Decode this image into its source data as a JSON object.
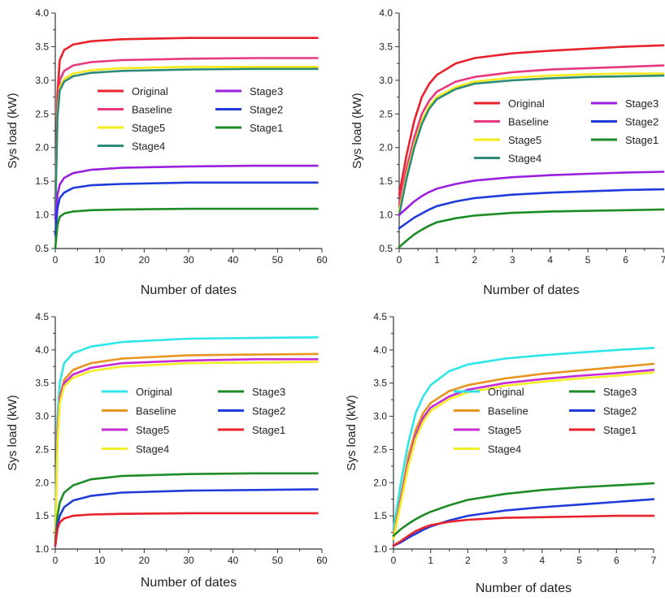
{
  "chart_data": [
    {
      "type": "line",
      "xlabel": "Number of dates",
      "ylabel": "Sys load (kW)",
      "xlim": [
        0,
        60
      ],
      "ylim": [
        0.5,
        4.0
      ],
      "xticks": [
        "0",
        "10",
        "20",
        "30",
        "40",
        "50",
        "60"
      ],
      "yticks": [
        "0.5",
        "1.0",
        "1.5",
        "2.0",
        "2.5",
        "3.0",
        "3.5",
        "4.0"
      ],
      "grid": false,
      "legend_position": "middle",
      "series": [
        {
          "name": "Original",
          "color": "#e8212a",
          "x": [
            0,
            0.5,
            1,
            2,
            4,
            8,
            15,
            30,
            45,
            59
          ],
          "y": [
            1.2,
            2.8,
            3.3,
            3.45,
            3.53,
            3.58,
            3.61,
            3.63,
            3.63,
            3.63
          ]
        },
        {
          "name": "Baseline",
          "color": "#e8377f",
          "x": [
            0,
            0.5,
            1,
            2,
            4,
            8,
            15,
            30,
            45,
            59
          ],
          "y": [
            1.1,
            2.6,
            3.0,
            3.14,
            3.22,
            3.27,
            3.3,
            3.32,
            3.33,
            3.33
          ]
        },
        {
          "name": "Stage5",
          "color": "#f5ea1b",
          "x": [
            0,
            0.5,
            1,
            2,
            4,
            8,
            15,
            30,
            45,
            59
          ],
          "y": [
            1.05,
            2.5,
            2.9,
            3.02,
            3.1,
            3.15,
            3.18,
            3.2,
            3.2,
            3.2
          ]
        },
        {
          "name": "Stage4",
          "color": "#2e8b7a",
          "x": [
            0,
            0.5,
            1,
            2,
            4,
            8,
            15,
            30,
            45,
            59
          ],
          "y": [
            1.0,
            2.45,
            2.85,
            2.98,
            3.06,
            3.11,
            3.14,
            3.16,
            3.17,
            3.17
          ]
        },
        {
          "name": "Stage3",
          "color": "#9a1fdf",
          "x": [
            0,
            0.5,
            1,
            2,
            4,
            8,
            15,
            30,
            45,
            59
          ],
          "y": [
            0.95,
            1.3,
            1.45,
            1.55,
            1.62,
            1.67,
            1.7,
            1.72,
            1.73,
            1.73
          ]
        },
        {
          "name": "Stage2",
          "color": "#1f3bdc",
          "x": [
            0,
            0.5,
            1,
            2,
            4,
            8,
            15,
            30,
            45,
            59
          ],
          "y": [
            0.7,
            1.1,
            1.25,
            1.33,
            1.4,
            1.44,
            1.46,
            1.48,
            1.48,
            1.48
          ]
        },
        {
          "name": "Stage1",
          "color": "#1d8b26",
          "x": [
            0,
            0.5,
            1,
            2,
            4,
            8,
            15,
            30,
            45,
            59
          ],
          "y": [
            0.5,
            0.85,
            0.97,
            1.02,
            1.05,
            1.07,
            1.08,
            1.09,
            1.09,
            1.09
          ]
        }
      ]
    },
    {
      "type": "line",
      "xlabel": "Number of dates",
      "ylabel": "Sys load (kW)",
      "xlim": [
        0,
        7
      ],
      "ylim": [
        0.5,
        4.0
      ],
      "xticks": [
        "0",
        "1",
        "2",
        "3",
        "4",
        "5",
        "6",
        "7"
      ],
      "yticks": [
        "0.5",
        "1.0",
        "1.5",
        "2.0",
        "2.5",
        "3.0",
        "3.5",
        "4.0"
      ],
      "grid": false,
      "legend_position": "middle",
      "series": [
        {
          "name": "Original",
          "color": "#e8212a",
          "x": [
            0,
            0.2,
            0.4,
            0.6,
            0.8,
            1.0,
            1.5,
            2,
            3,
            4,
            5,
            6,
            7
          ],
          "y": [
            1.3,
            1.9,
            2.4,
            2.75,
            2.95,
            3.08,
            3.25,
            3.33,
            3.4,
            3.44,
            3.47,
            3.5,
            3.52
          ]
        },
        {
          "name": "Baseline",
          "color": "#e8377f",
          "x": [
            0,
            0.2,
            0.4,
            0.6,
            0.8,
            1.0,
            1.5,
            2,
            3,
            4,
            5,
            6,
            7
          ],
          "y": [
            1.15,
            1.7,
            2.15,
            2.5,
            2.7,
            2.83,
            2.98,
            3.05,
            3.12,
            3.16,
            3.18,
            3.2,
            3.22
          ]
        },
        {
          "name": "Stage5",
          "color": "#f5ea1b",
          "x": [
            0,
            0.2,
            0.4,
            0.6,
            0.8,
            1.0,
            1.5,
            2,
            3,
            4,
            5,
            6,
            7
          ],
          "y": [
            1.05,
            1.6,
            2.05,
            2.4,
            2.62,
            2.75,
            2.9,
            2.98,
            3.04,
            3.07,
            3.09,
            3.1,
            3.1
          ]
        },
        {
          "name": "Stage4",
          "color": "#2e8b7a",
          "x": [
            0,
            0.2,
            0.4,
            0.6,
            0.8,
            1.0,
            1.5,
            2,
            3,
            4,
            5,
            6,
            7
          ],
          "y": [
            1.0,
            1.55,
            2.0,
            2.35,
            2.58,
            2.72,
            2.87,
            2.95,
            3.0,
            3.03,
            3.05,
            3.06,
            3.07
          ]
        },
        {
          "name": "Stage3",
          "color": "#9a1fdf",
          "x": [
            0,
            0.2,
            0.4,
            0.6,
            0.8,
            1.0,
            1.5,
            2,
            3,
            4,
            5,
            6,
            7
          ],
          "y": [
            1.0,
            1.1,
            1.2,
            1.28,
            1.34,
            1.39,
            1.46,
            1.51,
            1.56,
            1.59,
            1.61,
            1.63,
            1.64
          ]
        },
        {
          "name": "Stage2",
          "color": "#1f3bdc",
          "x": [
            0,
            0.2,
            0.4,
            0.6,
            0.8,
            1.0,
            1.5,
            2,
            3,
            4,
            5,
            6,
            7
          ],
          "y": [
            0.8,
            0.88,
            0.96,
            1.02,
            1.08,
            1.13,
            1.2,
            1.25,
            1.3,
            1.33,
            1.35,
            1.37,
            1.38
          ]
        },
        {
          "name": "Stage1",
          "color": "#1d8b26",
          "x": [
            0,
            0.2,
            0.4,
            0.6,
            0.8,
            1.0,
            1.5,
            2,
            3,
            4,
            5,
            6,
            7
          ],
          "y": [
            0.52,
            0.62,
            0.71,
            0.78,
            0.84,
            0.89,
            0.95,
            0.99,
            1.03,
            1.05,
            1.06,
            1.07,
            1.08
          ]
        }
      ]
    },
    {
      "type": "line",
      "xlabel": "Number of dates",
      "ylabel": "Sys load (kW)",
      "xlim": [
        0,
        60
      ],
      "ylim": [
        1.0,
        4.5
      ],
      "xticks": [
        "0",
        "10",
        "20",
        "30",
        "40",
        "50",
        "60"
      ],
      "yticks": [
        "1.0",
        "1.5",
        "2.0",
        "2.5",
        "3.0",
        "3.5",
        "4.0",
        "4.5"
      ],
      "grid": false,
      "legend_position": "middle",
      "series": [
        {
          "name": "Original",
          "color": "#2ee6ea",
          "x": [
            0,
            0.5,
            1,
            2,
            4,
            8,
            15,
            30,
            45,
            59
          ],
          "y": [
            1.4,
            3.0,
            3.5,
            3.8,
            3.95,
            4.05,
            4.12,
            4.17,
            4.18,
            4.19
          ]
        },
        {
          "name": "Baseline",
          "color": "#e8951f",
          "x": [
            0,
            0.5,
            1,
            2,
            4,
            8,
            15,
            30,
            45,
            59
          ],
          "y": [
            1.2,
            2.8,
            3.3,
            3.55,
            3.7,
            3.8,
            3.87,
            3.92,
            3.93,
            3.94
          ]
        },
        {
          "name": "Stage5",
          "color": "#c72bd6",
          "x": [
            0,
            0.5,
            1,
            2,
            4,
            8,
            15,
            30,
            45,
            59
          ],
          "y": [
            1.15,
            2.7,
            3.25,
            3.5,
            3.63,
            3.73,
            3.8,
            3.84,
            3.86,
            3.86
          ]
        },
        {
          "name": "Stage4",
          "color": "#f2ee23",
          "x": [
            0,
            0.5,
            1,
            2,
            4,
            8,
            15,
            30,
            45,
            59
          ],
          "y": [
            1.1,
            2.6,
            3.2,
            3.45,
            3.58,
            3.68,
            3.75,
            3.8,
            3.81,
            3.82
          ]
        },
        {
          "name": "Stage3",
          "color": "#1d8b26",
          "x": [
            0,
            0.5,
            1,
            2,
            4,
            8,
            15,
            30,
            45,
            59
          ],
          "y": [
            1.1,
            1.5,
            1.7,
            1.85,
            1.96,
            2.05,
            2.1,
            2.13,
            2.14,
            2.14
          ]
        },
        {
          "name": "Stage2",
          "color": "#1f3bdc",
          "x": [
            0,
            0.5,
            1,
            2,
            4,
            8,
            15,
            30,
            45,
            59
          ],
          "y": [
            1.05,
            1.35,
            1.5,
            1.63,
            1.73,
            1.8,
            1.85,
            1.88,
            1.89,
            1.9
          ]
        },
        {
          "name": "Stage1",
          "color": "#e8212a",
          "x": [
            0,
            0.5,
            1,
            2,
            4,
            8,
            15,
            30,
            45,
            59
          ],
          "y": [
            1.05,
            1.3,
            1.4,
            1.46,
            1.5,
            1.52,
            1.53,
            1.54,
            1.54,
            1.54
          ]
        }
      ]
    },
    {
      "type": "line",
      "xlabel": "Number of dates",
      "ylabel": "Sys load (kW)",
      "xlim": [
        0,
        7
      ],
      "ylim": [
        1.0,
        4.5
      ],
      "xticks": [
        "0",
        "1",
        "2",
        "3",
        "4",
        "5",
        "6",
        "7"
      ],
      "yticks": [
        "1.0",
        "1.5",
        "2.0",
        "2.5",
        "3.0",
        "3.5",
        "4.0",
        "4.5"
      ],
      "grid": false,
      "legend_position": "middle",
      "series": [
        {
          "name": "Original",
          "color": "#2ee6ea",
          "x": [
            0,
            0.2,
            0.4,
            0.6,
            0.8,
            1.0,
            1.5,
            2,
            3,
            4,
            5,
            6,
            7
          ],
          "y": [
            1.3,
            2.0,
            2.6,
            3.05,
            3.3,
            3.47,
            3.68,
            3.78,
            3.87,
            3.92,
            3.96,
            4.0,
            4.03
          ]
        },
        {
          "name": "Baseline",
          "color": "#e8951f",
          "x": [
            0,
            0.2,
            0.4,
            0.6,
            0.8,
            1.0,
            1.5,
            2,
            3,
            4,
            5,
            6,
            7
          ],
          "y": [
            1.2,
            1.8,
            2.4,
            2.8,
            3.05,
            3.2,
            3.38,
            3.47,
            3.57,
            3.64,
            3.69,
            3.74,
            3.79
          ]
        },
        {
          "name": "Stage5",
          "color": "#c72bd6",
          "x": [
            0,
            0.2,
            0.4,
            0.6,
            0.8,
            1.0,
            1.5,
            2,
            3,
            4,
            5,
            6,
            7
          ],
          "y": [
            1.15,
            1.75,
            2.3,
            2.72,
            2.98,
            3.13,
            3.3,
            3.4,
            3.5,
            3.56,
            3.61,
            3.65,
            3.7
          ]
        },
        {
          "name": "Stage4",
          "color": "#f2ee23",
          "x": [
            0,
            0.2,
            0.4,
            0.6,
            0.8,
            1.0,
            1.5,
            2,
            3,
            4,
            5,
            6,
            7
          ],
          "y": [
            1.15,
            1.7,
            2.25,
            2.66,
            2.92,
            3.08,
            3.26,
            3.36,
            3.46,
            3.52,
            3.57,
            3.61,
            3.66
          ]
        },
        {
          "name": "Stage3",
          "color": "#1d8b26",
          "x": [
            0,
            0.2,
            0.4,
            0.6,
            0.8,
            1.0,
            1.5,
            2,
            3,
            4,
            5,
            6,
            7
          ],
          "y": [
            1.2,
            1.3,
            1.38,
            1.45,
            1.51,
            1.56,
            1.66,
            1.74,
            1.83,
            1.89,
            1.93,
            1.96,
            1.99
          ]
        },
        {
          "name": "Stage2",
          "color": "#1f3bdc",
          "x": [
            0,
            0.2,
            0.4,
            0.6,
            0.8,
            1.0,
            1.5,
            2,
            3,
            4,
            5,
            6,
            7
          ],
          "y": [
            1.05,
            1.1,
            1.17,
            1.23,
            1.29,
            1.34,
            1.43,
            1.5,
            1.58,
            1.63,
            1.67,
            1.71,
            1.75
          ]
        },
        {
          "name": "Stage1",
          "color": "#e8212a",
          "x": [
            0,
            0.2,
            0.4,
            0.6,
            0.8,
            1.0,
            1.5,
            2,
            3,
            4,
            5,
            6,
            7
          ],
          "y": [
            1.05,
            1.12,
            1.2,
            1.27,
            1.32,
            1.36,
            1.41,
            1.44,
            1.47,
            1.48,
            1.49,
            1.5,
            1.5
          ]
        }
      ]
    }
  ]
}
